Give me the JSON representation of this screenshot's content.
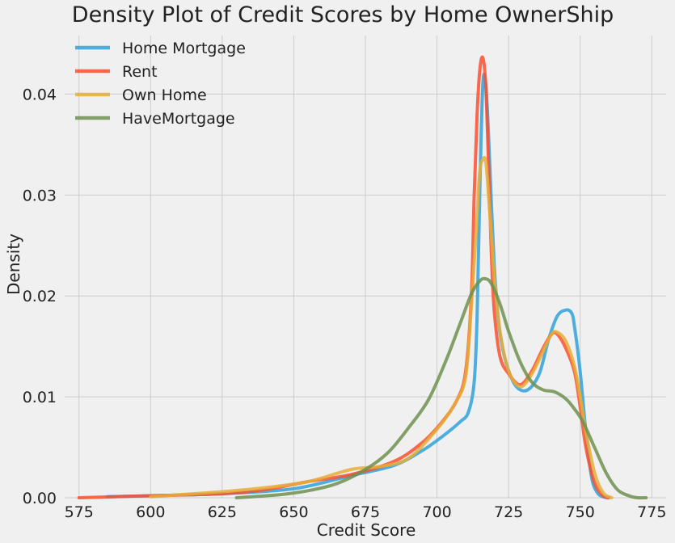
{
  "chart_data": {
    "type": "line",
    "title": "Density Plot of Credit Scores by Home OwnerShip",
    "xlabel": "Credit Score",
    "ylabel": "Density",
    "xlim": [
      570,
      780
    ],
    "ylim": [
      0,
      0.0458
    ],
    "x_ticks": [
      "575",
      "600",
      "625",
      "650",
      "675",
      "700",
      "725",
      "750",
      "775"
    ],
    "y_ticks": [
      "0.00",
      "0.01",
      "0.02",
      "0.03",
      "0.04"
    ],
    "grid": true,
    "legend_position": "top-left",
    "series": [
      {
        "name": "Home Mortgage",
        "color": "#30a2da",
        "x": [
          585,
          600,
          625,
          650,
          670,
          685,
          695,
          702,
          708,
          711,
          713,
          714,
          715,
          716,
          717,
          718,
          719,
          720,
          721,
          722,
          724,
          727,
          730,
          733,
          736,
          739,
          742,
          745,
          747,
          748,
          750,
          752,
          754,
          756,
          758,
          760
        ],
        "y": [
          0.0001,
          0.0002,
          0.0004,
          0.0009,
          0.0022,
          0.0032,
          0.0047,
          0.0061,
          0.0075,
          0.0085,
          0.0115,
          0.018,
          0.031,
          0.041,
          0.041,
          0.036,
          0.029,
          0.023,
          0.019,
          0.0163,
          0.0135,
          0.0113,
          0.0106,
          0.011,
          0.0125,
          0.0157,
          0.018,
          0.0186,
          0.0183,
          0.017,
          0.0125,
          0.0065,
          0.002,
          0.0005,
          0.0001,
          0.0
        ]
      },
      {
        "name": "Rent",
        "color": "#fc4f30",
        "x": [
          575,
          600,
          625,
          640,
          655,
          670,
          685,
          695,
          702,
          707,
          710,
          712,
          713,
          714,
          715,
          716,
          717,
          718,
          719,
          720,
          722,
          725,
          729,
          733,
          737,
          740,
          742,
          745,
          748,
          750,
          752,
          755,
          758,
          760
        ],
        "y": [
          0.0,
          0.0002,
          0.0004,
          0.0008,
          0.0016,
          0.0023,
          0.0036,
          0.0055,
          0.0076,
          0.0097,
          0.0125,
          0.02,
          0.03,
          0.038,
          0.0425,
          0.0436,
          0.041,
          0.033,
          0.024,
          0.0185,
          0.014,
          0.0123,
          0.0112,
          0.0125,
          0.0148,
          0.0162,
          0.0162,
          0.0148,
          0.0125,
          0.009,
          0.005,
          0.0015,
          0.0002,
          0.0
        ]
      },
      {
        "name": "Own Home",
        "color": "#e5ae38",
        "x": [
          600,
          625,
          640,
          655,
          670,
          680,
          690,
          700,
          706,
          710,
          712,
          714,
          715,
          716,
          717,
          718,
          719,
          720,
          722,
          725,
          729,
          733,
          737,
          740,
          742,
          745,
          748,
          750,
          752,
          755,
          758,
          761
        ],
        "y": [
          0.0001,
          0.0006,
          0.001,
          0.0016,
          0.0028,
          0.0031,
          0.0039,
          0.0068,
          0.0092,
          0.012,
          0.019,
          0.028,
          0.0325,
          0.0335,
          0.0334,
          0.03,
          0.026,
          0.022,
          0.0165,
          0.0126,
          0.011,
          0.0122,
          0.0145,
          0.0162,
          0.0164,
          0.0155,
          0.013,
          0.01,
          0.0065,
          0.0025,
          0.0005,
          0.0
        ]
      },
      {
        "name": "HaveMortgage",
        "color": "#6d904f",
        "x": [
          630,
          645,
          655,
          665,
          675,
          683,
          690,
          697,
          703,
          708,
          712,
          715,
          717,
          719,
          722,
          725,
          729,
          733,
          737,
          741,
          745,
          748,
          751,
          755,
          759,
          763,
          767,
          770,
          773
        ],
        "y": [
          0.0,
          0.0003,
          0.0007,
          0.0014,
          0.0028,
          0.0045,
          0.0069,
          0.0097,
          0.0135,
          0.0172,
          0.0202,
          0.0215,
          0.0217,
          0.0212,
          0.0192,
          0.0165,
          0.0135,
          0.0115,
          0.0107,
          0.0105,
          0.0098,
          0.0088,
          0.0075,
          0.005,
          0.0025,
          0.0008,
          0.0002,
          0.0,
          0.0
        ]
      }
    ]
  }
}
